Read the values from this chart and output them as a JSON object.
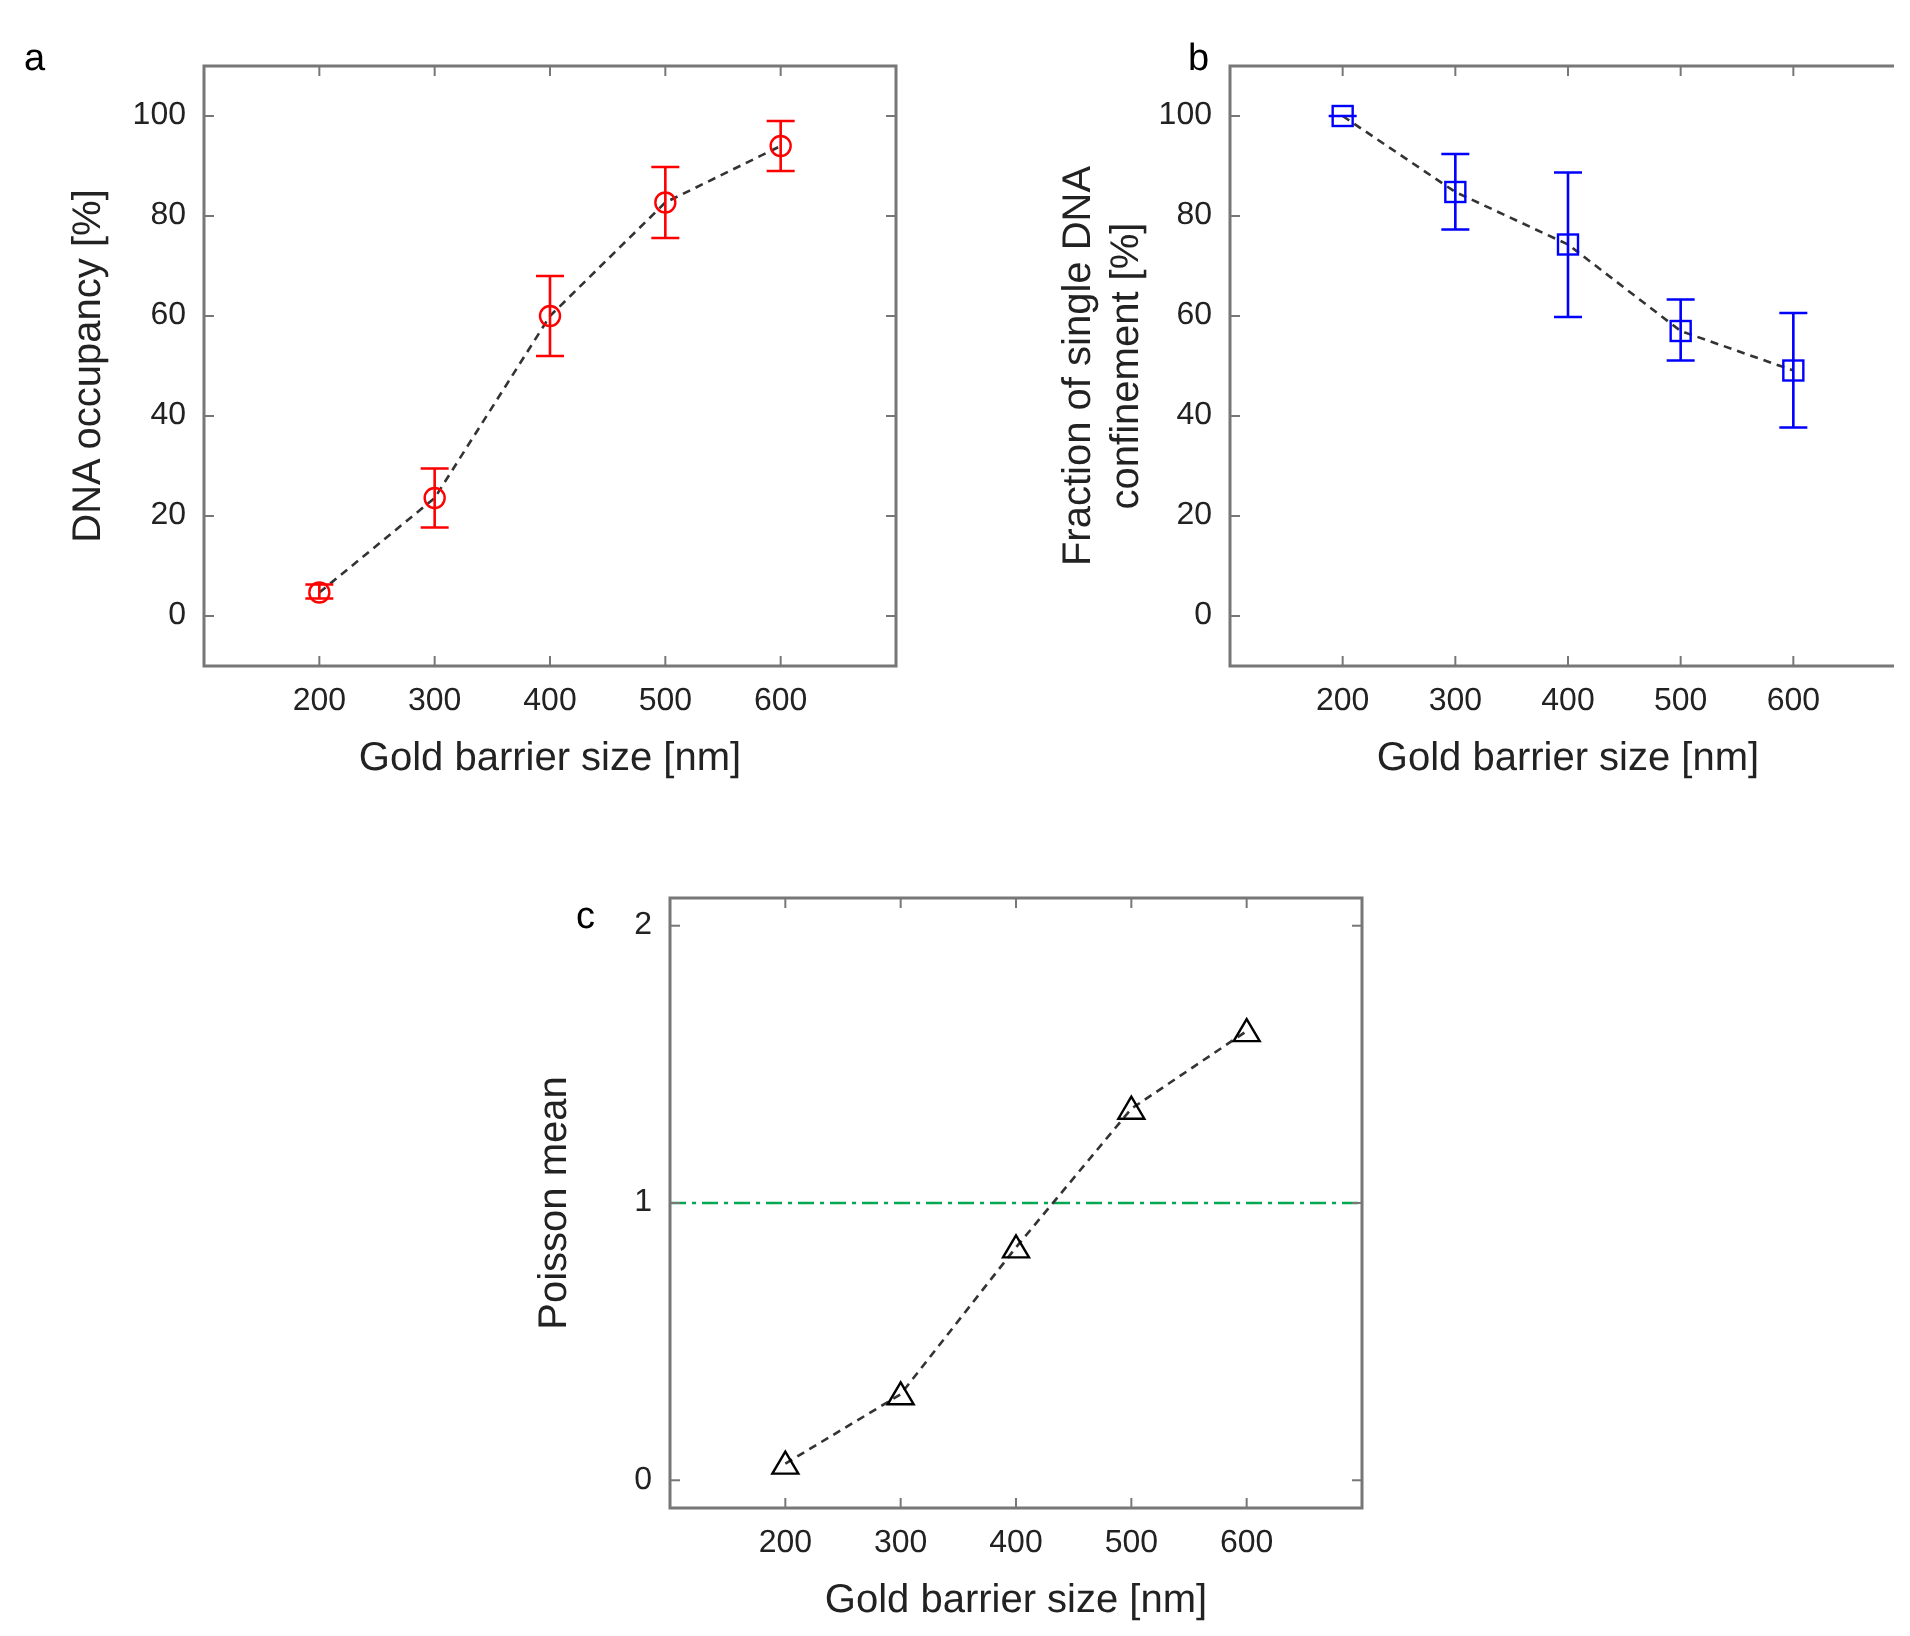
{
  "chart_data": [
    {
      "type": "line",
      "title": "a",
      "xlabel": "Gold barrier size [nm]",
      "ylabel": "DNA occupancy [%]",
      "x": [
        200,
        300,
        400,
        500,
        600
      ],
      "xlim": [
        100,
        700
      ],
      "xticks": [
        200,
        300,
        400,
        500,
        600
      ],
      "ylim": [
        -10,
        110
      ],
      "yticks": [
        0,
        20,
        40,
        60,
        80,
        100
      ],
      "marker": "circle",
      "line_style": "dashed",
      "grid": false,
      "series": [
        {
          "color": "#ff0000",
          "values": [
            4.7,
            23.6,
            60,
            82.7,
            94
          ],
          "errors": [
            [
              3.5,
              6.3
            ],
            [
              17.7,
              29.5
            ],
            [
              52,
              68
            ],
            [
              75.6,
              89.8
            ],
            [
              89,
              99
            ]
          ]
        }
      ]
    },
    {
      "type": "line",
      "title": "b",
      "xlabel": "Gold barrier size [nm]",
      "ylabel": "Fraction of single DNA confinement [%]",
      "x": [
        200,
        300,
        400,
        500,
        600
      ],
      "xlim": [
        100,
        700
      ],
      "xticks": [
        200,
        300,
        400,
        500,
        600
      ],
      "ylim": [
        -10,
        110
      ],
      "yticks": [
        0,
        20,
        40,
        60,
        80,
        100
      ],
      "marker": "square",
      "line_style": "dashed",
      "grid": false,
      "series": [
        {
          "color": "#0000ff",
          "values": [
            100,
            84.8,
            74.3,
            57,
            49.1
          ],
          "errors": [
            [
              100,
              100
            ],
            [
              77.3,
              92.4
            ],
            [
              59.8,
              88.7
            ],
            [
              51.1,
              63.3
            ],
            [
              37.7,
              60.6
            ]
          ]
        }
      ]
    },
    {
      "type": "line",
      "title": "c",
      "xlabel": "Gold barrier size [nm]",
      "ylabel": "Poisson mean",
      "x": [
        200,
        300,
        400,
        500,
        600
      ],
      "xlim": [
        100,
        700
      ],
      "xticks": [
        200,
        300,
        400,
        500,
        600
      ],
      "ylim": [
        -0.1,
        2.1
      ],
      "yticks": [
        0,
        1,
        2
      ],
      "marker": "triangle",
      "line_style": "dashed",
      "grid": false,
      "series": [
        {
          "color": "#000000",
          "values": [
            0.06,
            0.31,
            0.84,
            1.34,
            1.62
          ]
        }
      ],
      "ref_lines": [
        {
          "axis": "y",
          "value": 1,
          "color": "#00a650",
          "line_style": "dashed"
        }
      ]
    }
  ]
}
